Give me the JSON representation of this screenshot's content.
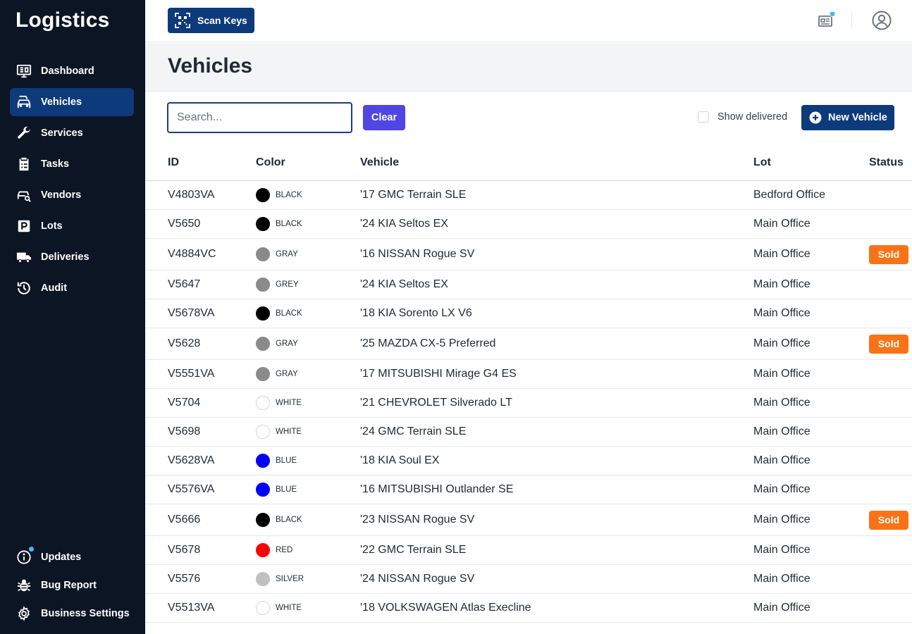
{
  "app": {
    "brand": "Logistics"
  },
  "sidebar": {
    "items": [
      {
        "label": "Dashboard",
        "icon": "dashboard-icon",
        "active": false
      },
      {
        "label": "Vehicles",
        "icon": "car-icon",
        "active": true
      },
      {
        "label": "Services",
        "icon": "wrench-icon",
        "active": false
      },
      {
        "label": "Tasks",
        "icon": "clipboard-icon",
        "active": false
      },
      {
        "label": "Vendors",
        "icon": "vendor-car-icon",
        "active": false
      },
      {
        "label": "Lots",
        "icon": "parking-icon",
        "active": false
      },
      {
        "label": "Deliveries",
        "icon": "truck-icon",
        "active": false
      },
      {
        "label": "Audit",
        "icon": "history-icon",
        "active": false
      }
    ],
    "bottom_items": [
      {
        "label": "Updates",
        "icon": "info-icon"
      },
      {
        "label": "Bug Report",
        "icon": "bug-icon"
      },
      {
        "label": "Business Settings",
        "icon": "gear-icon"
      }
    ]
  },
  "topbar": {
    "scan_label": "Scan Keys"
  },
  "page": {
    "title": "Vehicles"
  },
  "toolbar": {
    "search_placeholder": "Search...",
    "search_value": "",
    "clear_label": "Clear",
    "show_delivered_label": "Show delivered",
    "show_delivered_checked": false,
    "new_vehicle_label": "New Vehicle"
  },
  "table": {
    "headers": {
      "id": "ID",
      "color": "Color",
      "vehicle": "Vehicle",
      "lot": "Lot",
      "status": "Status"
    },
    "rows": [
      {
        "id": "V4803VA",
        "color": "BLACK",
        "hex": "#000000",
        "vehicle": "'17 GMC Terrain SLE",
        "lot": "Bedford Office",
        "status": ""
      },
      {
        "id": "V5650",
        "color": "BLACK",
        "hex": "#000000",
        "vehicle": "'24 KIA Seltos EX",
        "lot": "Main Office",
        "status": ""
      },
      {
        "id": "V4884VC",
        "color": "GRAY",
        "hex": "#8a8a8a",
        "vehicle": "'16 NISSAN Rogue SV",
        "lot": "Main Office",
        "status": "Sold"
      },
      {
        "id": "V5647",
        "color": "GREY",
        "hex": "#8a8a8a",
        "vehicle": "'24 KIA Seltos EX",
        "lot": "Main Office",
        "status": ""
      },
      {
        "id": "V5678VA",
        "color": "BLACK",
        "hex": "#000000",
        "vehicle": "'18 KIA Sorento LX V6",
        "lot": "Main Office",
        "status": ""
      },
      {
        "id": "V5628",
        "color": "GRAY",
        "hex": "#8a8a8a",
        "vehicle": "'25 MAZDA CX-5 Preferred",
        "lot": "Main Office",
        "status": "Sold"
      },
      {
        "id": "V5551VA",
        "color": "GRAY",
        "hex": "#8a8a8a",
        "vehicle": "'17 MITSUBISHI Mirage G4 ES",
        "lot": "Main Office",
        "status": ""
      },
      {
        "id": "V5704",
        "color": "WHITE",
        "hex": "#ffffff",
        "vehicle": "'21 CHEVROLET Silverado LT",
        "lot": "Main Office",
        "status": ""
      },
      {
        "id": "V5698",
        "color": "WHITE",
        "hex": "#ffffff",
        "vehicle": "'24 GMC Terrain SLE",
        "lot": "Main Office",
        "status": ""
      },
      {
        "id": "V5628VA",
        "color": "BLUE",
        "hex": "#0000ff",
        "vehicle": "'18 KIA Soul EX",
        "lot": "Main Office",
        "status": ""
      },
      {
        "id": "V5576VA",
        "color": "BLUE",
        "hex": "#0000ff",
        "vehicle": "'16 MITSUBISHI Outlander SE",
        "lot": "Main Office",
        "status": ""
      },
      {
        "id": "V5666",
        "color": "BLACK",
        "hex": "#000000",
        "vehicle": "'23 NISSAN Rogue SV",
        "lot": "Main Office",
        "status": "Sold"
      },
      {
        "id": "V5678",
        "color": "RED",
        "hex": "#ff0000",
        "vehicle": "'22 GMC Terrain SLE",
        "lot": "Main Office",
        "status": ""
      },
      {
        "id": "V5576",
        "color": "SILVER",
        "hex": "#c0c0c0",
        "vehicle": "'24 NISSAN Rogue SV",
        "lot": "Main Office",
        "status": ""
      },
      {
        "id": "V5513VA",
        "color": "WHITE",
        "hex": "#ffffff",
        "vehicle": "'18 VOLKSWAGEN Atlas Execline",
        "lot": "Main Office",
        "status": ""
      }
    ]
  },
  "colors": {
    "sidebar_bg": "#0c1524",
    "primary": "#0d3a7a",
    "clear_button": "#4f46e5",
    "sold_badge": "#f97316",
    "notification": "#38bdf8"
  }
}
